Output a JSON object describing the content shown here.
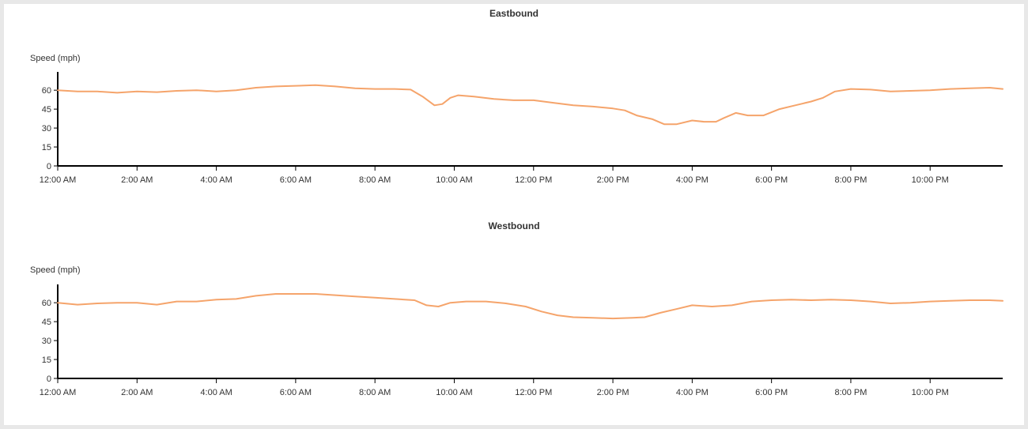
{
  "colors": {
    "series": "#f5a46b",
    "axis": "#000000",
    "text": "#333333",
    "frame": "#e8e8e8"
  },
  "chart_data": [
    {
      "type": "line",
      "title": "Eastbound",
      "ylabel": "Speed (mph)",
      "xlabel": "",
      "xlim": [
        0,
        23.83
      ],
      "ylim": [
        0,
        72
      ],
      "yticks": [
        0,
        15,
        30,
        45,
        60
      ],
      "xticks": [
        {
          "value": 0,
          "label": "12:00 AM"
        },
        {
          "value": 2,
          "label": "2:00 AM"
        },
        {
          "value": 4,
          "label": "4:00 AM"
        },
        {
          "value": 6,
          "label": "6:00 AM"
        },
        {
          "value": 8,
          "label": "8:00 AM"
        },
        {
          "value": 10,
          "label": "10:00 AM"
        },
        {
          "value": 12,
          "label": "12:00 PM"
        },
        {
          "value": 14,
          "label": "2:00 PM"
        },
        {
          "value": 16,
          "label": "4:00 PM"
        },
        {
          "value": 18,
          "label": "6:00 PM"
        },
        {
          "value": 20,
          "label": "8:00 PM"
        },
        {
          "value": 22,
          "label": "10:00 PM"
        }
      ],
      "series": [
        {
          "x": [
            0,
            0.5,
            1,
            1.5,
            2,
            2.5,
            3,
            3.5,
            4,
            4.5,
            5,
            5.5,
            6,
            6.5,
            7,
            7.5,
            8,
            8.5,
            8.9,
            9.2,
            9.5,
            9.7,
            9.9,
            10.1,
            10.5,
            11,
            11.5,
            12,
            12.5,
            13,
            13.5,
            14,
            14.3,
            14.6,
            15,
            15.3,
            15.6,
            16,
            16.3,
            16.6,
            16.8,
            17.1,
            17.4,
            17.8,
            18.2,
            18.6,
            19,
            19.3,
            19.6,
            20,
            20.5,
            21,
            21.5,
            22,
            22.5,
            23,
            23.5,
            23.83
          ],
          "y": [
            60,
            59,
            59,
            58,
            59,
            58.5,
            59.5,
            60,
            59,
            60,
            62,
            63,
            63.5,
            64,
            63,
            61.5,
            61,
            61,
            60.5,
            55,
            48,
            49,
            54,
            56,
            55,
            53,
            52,
            52,
            50,
            48,
            47,
            45.5,
            44,
            40,
            37,
            33,
            33,
            36,
            35,
            35,
            38,
            42,
            40,
            40,
            45,
            48,
            51,
            54,
            59,
            61,
            60.5,
            59,
            59.5,
            60,
            61,
            61.5,
            62,
            61
          ]
        }
      ]
    },
    {
      "type": "line",
      "title": "Westbound",
      "ylabel": "Speed (mph)",
      "xlabel": "",
      "xlim": [
        0,
        23.83
      ],
      "ylim": [
        0,
        72
      ],
      "yticks": [
        0,
        15,
        30,
        45,
        60
      ],
      "xticks": [
        {
          "value": 0,
          "label": "12:00 AM"
        },
        {
          "value": 2,
          "label": "2:00 AM"
        },
        {
          "value": 4,
          "label": "4:00 AM"
        },
        {
          "value": 6,
          "label": "6:00 AM"
        },
        {
          "value": 8,
          "label": "8:00 AM"
        },
        {
          "value": 10,
          "label": "10:00 AM"
        },
        {
          "value": 12,
          "label": "12:00 PM"
        },
        {
          "value": 14,
          "label": "2:00 PM"
        },
        {
          "value": 16,
          "label": "4:00 PM"
        },
        {
          "value": 18,
          "label": "6:00 PM"
        },
        {
          "value": 20,
          "label": "8:00 PM"
        },
        {
          "value": 22,
          "label": "10:00 PM"
        }
      ],
      "series": [
        {
          "x": [
            0,
            0.5,
            1,
            1.5,
            2,
            2.5,
            3,
            3.5,
            4,
            4.5,
            5,
            5.5,
            6,
            6.5,
            7,
            7.5,
            8,
            8.5,
            9,
            9.3,
            9.6,
            9.9,
            10.3,
            10.8,
            11.3,
            11.8,
            12.2,
            12.6,
            13,
            13.5,
            14,
            14.5,
            14.8,
            15.2,
            15.6,
            16,
            16.5,
            17,
            17.5,
            18,
            18.5,
            19,
            19.5,
            20,
            20.5,
            21,
            21.5,
            22,
            22.5,
            23,
            23.5,
            23.83
          ],
          "y": [
            60,
            58.5,
            59.5,
            60,
            60,
            58.5,
            61,
            61,
            62.5,
            63,
            65.5,
            67,
            67,
            67,
            66,
            65,
            64,
            63,
            62,
            58,
            57,
            60,
            61,
            61,
            59.5,
            57,
            53,
            50,
            48.5,
            48,
            47.5,
            48,
            48.5,
            52,
            55,
            58,
            57,
            58,
            61,
            62,
            62.5,
            62,
            62.5,
            62,
            61,
            59.5,
            60,
            61,
            61.5,
            62,
            62,
            61.5
          ]
        }
      ]
    }
  ]
}
